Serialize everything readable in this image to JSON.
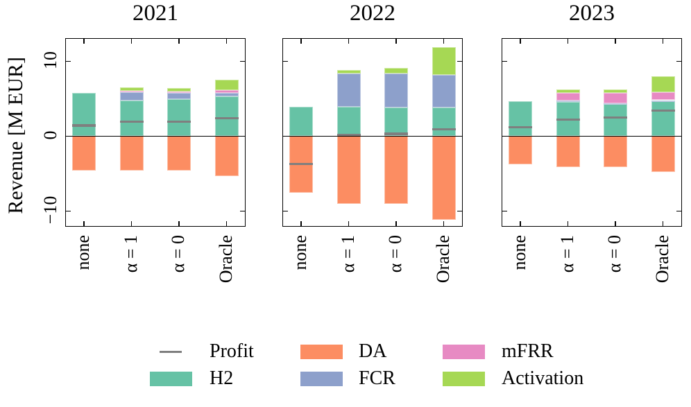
{
  "chart_data": {
    "type": "bar",
    "stacked": true,
    "ylabel": "Revenue [M EUR]",
    "ylim": [
      -12.2,
      13.0
    ],
    "grid": false,
    "yticks": [
      {
        "value": -10,
        "label": "−10"
      },
      {
        "value": 0,
        "label": "0"
      },
      {
        "value": 10,
        "label": "10"
      }
    ],
    "categories": [
      "none",
      "α = 1",
      "α = 0",
      "Oracle"
    ],
    "stack_order_positive": [
      "H2",
      "FCR",
      "mFRR",
      "Activation"
    ],
    "stack_order_negative": [
      "DA"
    ],
    "colors": {
      "H2": "#66c2a5",
      "DA": "#fc8d62",
      "FCR": "#8da0cb",
      "mFRR": "#e78ac3",
      "Activation": "#a6d854",
      "Profit": "#7f7f7f"
    },
    "legend": {
      "position": "bottom-center",
      "entries": [
        {
          "name": "Profit",
          "swatch": "line",
          "color": "#7f7f7f"
        },
        {
          "name": "H2",
          "swatch": "rect",
          "color": "#66c2a5"
        },
        {
          "name": "DA",
          "swatch": "rect",
          "color": "#fc8d62"
        },
        {
          "name": "FCR",
          "swatch": "rect",
          "color": "#8da0cb"
        },
        {
          "name": "mFRR",
          "swatch": "rect",
          "color": "#e78ac3"
        },
        {
          "name": "Activation",
          "swatch": "rect",
          "color": "#a6d854"
        }
      ]
    },
    "subplots": [
      {
        "title": "2021",
        "series": [
          {
            "name": "H2",
            "values": [
              5.75,
              4.8,
              4.9,
              5.3
            ]
          },
          {
            "name": "FCR",
            "values": [
              0,
              1.05,
              0.85,
              0.5
            ]
          },
          {
            "name": "mFRR",
            "values": [
              0,
              0.2,
              0.2,
              0.3
            ]
          },
          {
            "name": "Activation",
            "values": [
              0,
              0.45,
              0.5,
              1.45
            ]
          },
          {
            "name": "DA",
            "values": [
              -4.6,
              -4.6,
              -4.6,
              -5.3
            ]
          },
          {
            "name": "Profit",
            "values": [
              1.4,
              1.95,
              1.95,
              2.4
            ]
          }
        ]
      },
      {
        "title": "2022",
        "series": [
          {
            "name": "H2",
            "values": [
              3.9,
              3.95,
              3.85,
              3.85
            ]
          },
          {
            "name": "FCR",
            "values": [
              0,
              4.4,
              4.5,
              4.3
            ]
          },
          {
            "name": "mFRR",
            "values": [
              0,
              0,
              0,
              0
            ]
          },
          {
            "name": "Activation",
            "values": [
              0,
              0.45,
              0.75,
              3.75
            ]
          },
          {
            "name": "DA",
            "values": [
              -7.6,
              -9.05,
              -9.05,
              -11.2
            ]
          },
          {
            "name": "Profit",
            "values": [
              -3.7,
              0.1,
              0.3,
              0.9
            ]
          }
        ]
      },
      {
        "title": "2023",
        "series": [
          {
            "name": "H2",
            "values": [
              4.7,
              4.6,
              4.3,
              4.65
            ]
          },
          {
            "name": "FCR",
            "values": [
              0,
              0.15,
              0.1,
              0.15
            ]
          },
          {
            "name": "mFRR",
            "values": [
              0,
              1.0,
              1.35,
              1.1
            ]
          },
          {
            "name": "Activation",
            "values": [
              0,
              0.45,
              0.5,
              2.1
            ]
          },
          {
            "name": "DA",
            "values": [
              -3.75,
              -4.15,
              -4.1,
              -4.8
            ]
          },
          {
            "name": "Profit",
            "values": [
              1.2,
              2.2,
              2.5,
              3.4
            ]
          }
        ]
      }
    ]
  }
}
